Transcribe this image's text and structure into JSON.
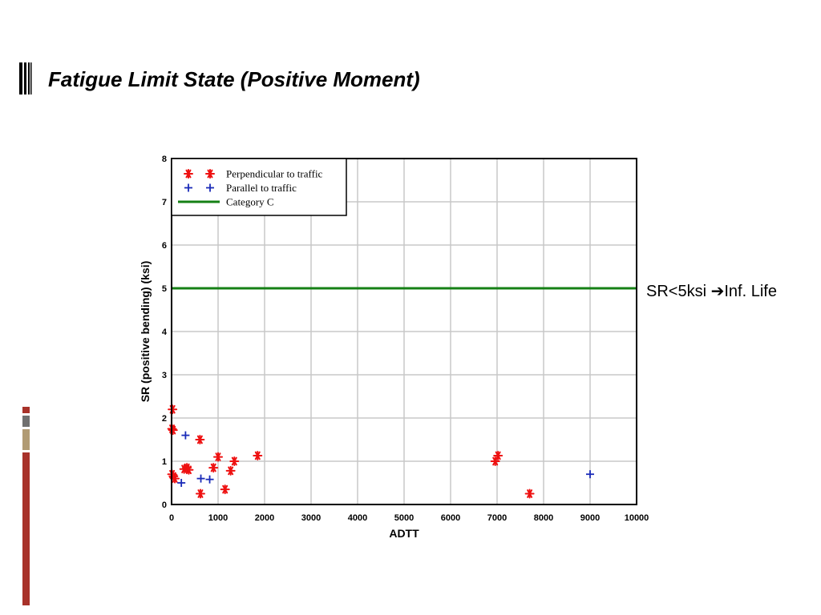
{
  "slide": {
    "title": "Fatigue Limit State (Positive Moment)"
  },
  "annotation": {
    "prefix": "SR<5ksi ",
    "arrow": "➔",
    "suffix": "Inf. Life"
  },
  "colors": {
    "perpendicular": "#ee1111",
    "parallel": "#1a2bb8",
    "category_c": "#158015",
    "grid": "#c8c8c8",
    "deco_dark_red": "#a8322a",
    "deco_gray": "#707070",
    "deco_tan": "#b19b74"
  },
  "chart_data": {
    "type": "scatter",
    "title": "",
    "xlabel": "ADTT",
    "ylabel": "SR (positive bending) (ksi)",
    "xlim": [
      0,
      10000
    ],
    "ylim": [
      0,
      8
    ],
    "xticks": [
      0,
      1000,
      2000,
      3000,
      4000,
      5000,
      6000,
      7000,
      8000,
      9000,
      10000
    ],
    "yticks": [
      0,
      1,
      2,
      3,
      4,
      5,
      6,
      7,
      8
    ],
    "grid": true,
    "legend_position": "top-left",
    "series": [
      {
        "name": "Perpendicular to traffic",
        "marker": "asterisk",
        "points": [
          [
            20,
            2.2
          ],
          [
            10,
            1.75
          ],
          [
            30,
            1.72
          ],
          [
            10,
            0.7
          ],
          [
            40,
            0.65
          ],
          [
            70,
            0.6
          ],
          [
            270,
            0.82
          ],
          [
            330,
            0.85
          ],
          [
            370,
            0.8
          ],
          [
            610,
            1.5
          ],
          [
            620,
            0.25
          ],
          [
            900,
            0.85
          ],
          [
            1000,
            1.1
          ],
          [
            1150,
            0.35
          ],
          [
            1270,
            0.78
          ],
          [
            1350,
            1.0
          ],
          [
            1850,
            1.13
          ],
          [
            6960,
            1.0
          ],
          [
            7020,
            1.13
          ],
          [
            7700,
            0.25
          ]
        ]
      },
      {
        "name": "Parallel to traffic",
        "marker": "plus",
        "points": [
          [
            300,
            1.6
          ],
          [
            210,
            0.5
          ],
          [
            630,
            0.6
          ],
          [
            820,
            0.58
          ],
          [
            9000,
            0.7
          ]
        ]
      },
      {
        "name": "Category C",
        "type": "hline",
        "y": 5
      }
    ]
  }
}
